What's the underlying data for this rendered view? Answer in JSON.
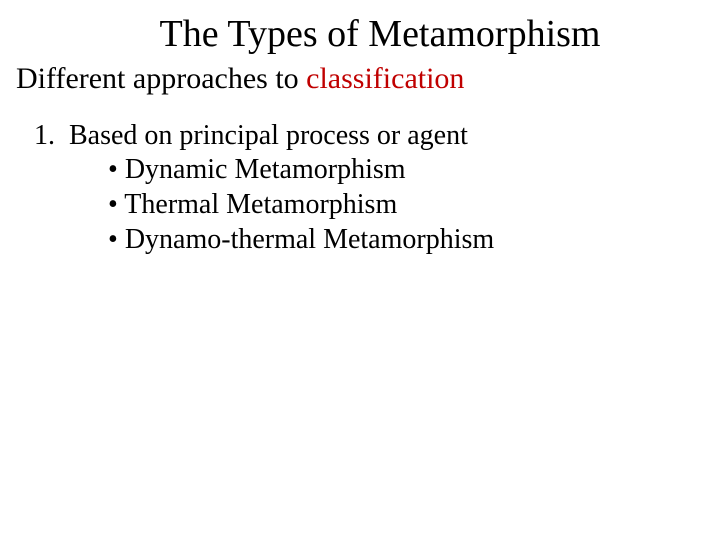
{
  "title": "The Types of Metamorphism",
  "subtitle_prefix": "Different approaches to ",
  "subtitle_highlight": "classification",
  "item": {
    "number": "1.",
    "heading": "Based on principal process or agent",
    "bullets": [
      "Dynamic Metamorphism",
      "Thermal Metamorphism",
      "Dynamo-thermal Metamorphism"
    ]
  },
  "colors": {
    "title_color": "#000000",
    "text_color": "#000000",
    "highlight_color": "#c00000",
    "background": "#ffffff"
  },
  "typography": {
    "font_family": "Garamond, Times New Roman, serif",
    "title_fontsize": 38,
    "subtitle_fontsize": 30,
    "body_fontsize": 28
  }
}
